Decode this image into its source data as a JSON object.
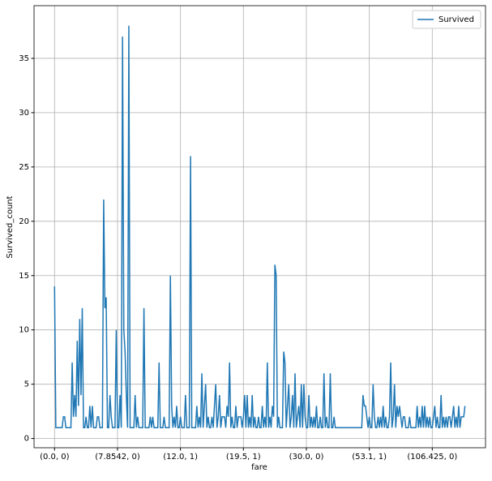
{
  "chart_data": {
    "type": "line",
    "xlabel": "fare",
    "ylabel": "Survived_count",
    "series": [
      {
        "name": "Survived",
        "color": "#1f77b4",
        "values": [
          14,
          1,
          1,
          1,
          1,
          1,
          1,
          2,
          2,
          1,
          1,
          1,
          1,
          1,
          7,
          2,
          4,
          2,
          9,
          3,
          11,
          4,
          12,
          1,
          1,
          2,
          1,
          1,
          3,
          1,
          3,
          1,
          1,
          1,
          2,
          2,
          1,
          1,
          1,
          22,
          12,
          13,
          1,
          1,
          4,
          2,
          1,
          1,
          1,
          10,
          1,
          1,
          4,
          1,
          37,
          10,
          8,
          4,
          1,
          38,
          1,
          1,
          1,
          1,
          4,
          1,
          2,
          1,
          1,
          1,
          1,
          12,
          1,
          1,
          1,
          1,
          2,
          1,
          2,
          1,
          1,
          1,
          1,
          7,
          1,
          1,
          1,
          2,
          1,
          1,
          1,
          1,
          15,
          3,
          1,
          2,
          1,
          3,
          1,
          1,
          2,
          1,
          1,
          1,
          4,
          1,
          1,
          1,
          26,
          1,
          1,
          1,
          1,
          3,
          1,
          2,
          1,
          6,
          1,
          3,
          5,
          1,
          2,
          1,
          1,
          2,
          1,
          3,
          5,
          1,
          2,
          4,
          1,
          2,
          2,
          2,
          1,
          3,
          2,
          7,
          1,
          2,
          1,
          1,
          3,
          1,
          2,
          2,
          2,
          1,
          2,
          4,
          1,
          4,
          1,
          2,
          1,
          4,
          1,
          2,
          1,
          1,
          2,
          1,
          1,
          3,
          1,
          2,
          1,
          7,
          1,
          2,
          1,
          3,
          2,
          16,
          15,
          1,
          2,
          1,
          1,
          1,
          8,
          7,
          1,
          3,
          5,
          1,
          2,
          4,
          1,
          6,
          1,
          2,
          3,
          1,
          5,
          1,
          5,
          2,
          1,
          1,
          4,
          1,
          2,
          1,
          2,
          1,
          3,
          1,
          1,
          2,
          1,
          1,
          6,
          1,
          2,
          1,
          1,
          6,
          1,
          1,
          2,
          1,
          1,
          1,
          1,
          1,
          1,
          1,
          1,
          1,
          1,
          1,
          1,
          1,
          1,
          1,
          1,
          1,
          1,
          1,
          1,
          1,
          1,
          4,
          3,
          3,
          2,
          1,
          2,
          1,
          1,
          5,
          2,
          1,
          1,
          2,
          1,
          2,
          1,
          3,
          1,
          2,
          1,
          1,
          2,
          7,
          1,
          2,
          5,
          1,
          3,
          2,
          3,
          2,
          1,
          2,
          2,
          1,
          1,
          1,
          2,
          1,
          1,
          1,
          1,
          1,
          3,
          1,
          2,
          1,
          3,
          1,
          3,
          1,
          2,
          1,
          2,
          1,
          1,
          2,
          3,
          1,
          2,
          1,
          1,
          4,
          1,
          2,
          1,
          2,
          1,
          2,
          2,
          1,
          2,
          3,
          1,
          2,
          1,
          3,
          1,
          2,
          2,
          2,
          3
        ]
      }
    ],
    "xlim": [
      -16.3,
      342.3
    ],
    "xticks": [
      {
        "value": 0,
        "label": "(0.0, 0)"
      },
      {
        "value": 50,
        "label": "(7.8542, 0)"
      },
      {
        "value": 100,
        "label": "(12.0, 1)"
      },
      {
        "value": 150,
        "label": "(19.5, 1)"
      },
      {
        "value": 200,
        "label": "(30.0, 0)"
      },
      {
        "value": 250,
        "label": "(53.1, 1)"
      },
      {
        "value": 300,
        "label": "(106.425, 0)"
      }
    ],
    "ylim": [
      -0.85,
      39.85
    ],
    "yticks": [
      0,
      5,
      10,
      15,
      20,
      25,
      30,
      35
    ],
    "grid": true,
    "legend": "upper right"
  }
}
